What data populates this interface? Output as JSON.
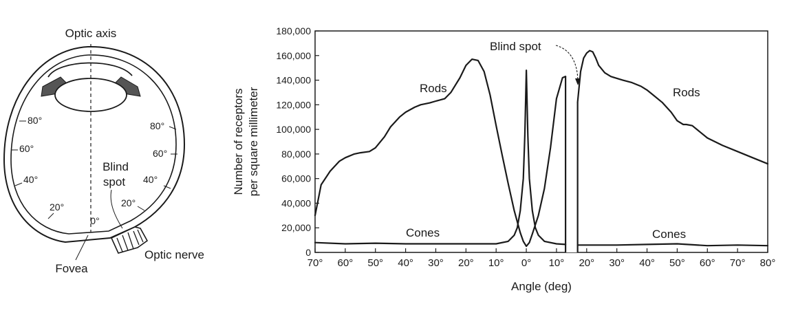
{
  "eye_diagram": {
    "optic_axis_label": "Optic axis",
    "fovea_label": "Fovea",
    "optic_nerve_label": "Optic nerve",
    "blind_spot_label_line1": "Blind",
    "blind_spot_label_line2": "spot",
    "center_angle_label": "0°",
    "left_angle_labels": [
      "80°",
      "60°",
      "40°",
      "20°"
    ],
    "right_angle_labels": [
      "80°",
      "60°",
      "40°",
      "20°"
    ]
  },
  "chart_data": {
    "type": "line",
    "xlabel": "Angle (deg)",
    "ylabel_line1": "Number of receptors",
    "ylabel_line2": "per square millimeter",
    "x_tick_labels": [
      "70°",
      "60°",
      "50°",
      "40°",
      "30°",
      "20°",
      "10°",
      "0°",
      "10°",
      "20°",
      "30°",
      "40°",
      "50°",
      "60°",
      "70°",
      "80°"
    ],
    "x_tick_values": [
      -70,
      -60,
      -50,
      -40,
      -30,
      -20,
      -10,
      0,
      10,
      20,
      30,
      40,
      50,
      60,
      70,
      80
    ],
    "y_tick_labels": [
      "0",
      "20,000",
      "40,000",
      "60,000",
      "80,000",
      "100,000",
      "120,000",
      "140,000",
      "160,000",
      "180,000"
    ],
    "y_tick_values": [
      0,
      20000,
      40000,
      60000,
      80000,
      100000,
      120000,
      140000,
      160000,
      180000
    ],
    "xlim": [
      -70,
      80
    ],
    "ylim": [
      0,
      180000
    ],
    "grid": false,
    "blind_spot_range": [
      13,
      17
    ],
    "annotations": {
      "rods_left": "Rods",
      "rods_right": "Rods",
      "cones_left": "Cones",
      "cones_right": "Cones",
      "blind_spot": "Blind spot"
    },
    "series": [
      {
        "id": "rods",
        "segments": [
          {
            "x": [
              -70,
              -68,
              -65,
              -62,
              -60,
              -57,
              -55,
              -52,
              -50,
              -47,
              -45,
              -42,
              -40,
              -37,
              -35,
              -32,
              -30,
              -27,
              -25,
              -22,
              -20,
              -18,
              -16,
              -14,
              -12,
              -10,
              -8,
              -6,
              -4,
              -2,
              -1,
              0,
              1,
              2,
              4,
              6,
              8,
              10,
              12,
              13
            ],
            "y": [
              30000,
              55000,
              66000,
              74000,
              77000,
              80000,
              81000,
              82000,
              85000,
              94000,
              102000,
              110000,
              114000,
              118000,
              120000,
              121500,
              123000,
              125000,
              130000,
              142000,
              152000,
              157000,
              156000,
              147000,
              128000,
              103000,
              79000,
              56000,
              34000,
              16000,
              9000,
              5000,
              8000,
              15000,
              30000,
              52000,
              85000,
              125000,
              142000,
              143000
            ]
          },
          {
            "x": [
              17,
              18,
              19,
              20,
              21,
              22,
              23,
              24,
              26,
              28,
              30,
              32,
              35,
              38,
              40,
              42,
              45,
              48,
              50,
              52,
              53,
              55,
              57,
              60,
              65,
              70,
              75,
              80
            ],
            "y": [
              122000,
              147000,
              158000,
              162000,
              164000,
              163000,
              158000,
              152000,
              146000,
              143000,
              141500,
              140000,
              138000,
              135000,
              132000,
              128000,
              122000,
              114000,
              107000,
              104000,
              104000,
              103000,
              99000,
              93000,
              87000,
              82000,
              77000,
              72000
            ]
          }
        ]
      },
      {
        "id": "cones",
        "segments": [
          {
            "x": [
              -70,
              -60,
              -50,
              -40,
              -30,
              -20,
              -10,
              -6,
              -4,
              -3,
              -2,
              -1,
              -0.5,
              0,
              0.5,
              1,
              2,
              3,
              4,
              6,
              10,
              13
            ],
            "y": [
              8000,
              7000,
              7500,
              7000,
              7000,
              7000,
              7000,
              9000,
              14000,
              20000,
              34000,
              60000,
              95000,
              148000,
              95000,
              60000,
              34000,
              20000,
              14000,
              9000,
              7000,
              6500
            ]
          },
          {
            "x": [
              17,
              20,
              30,
              40,
              50,
              60,
              70,
              80
            ],
            "y": [
              6000,
              6000,
              6000,
              6500,
              7000,
              5500,
              6000,
              5500
            ]
          }
        ]
      }
    ]
  }
}
